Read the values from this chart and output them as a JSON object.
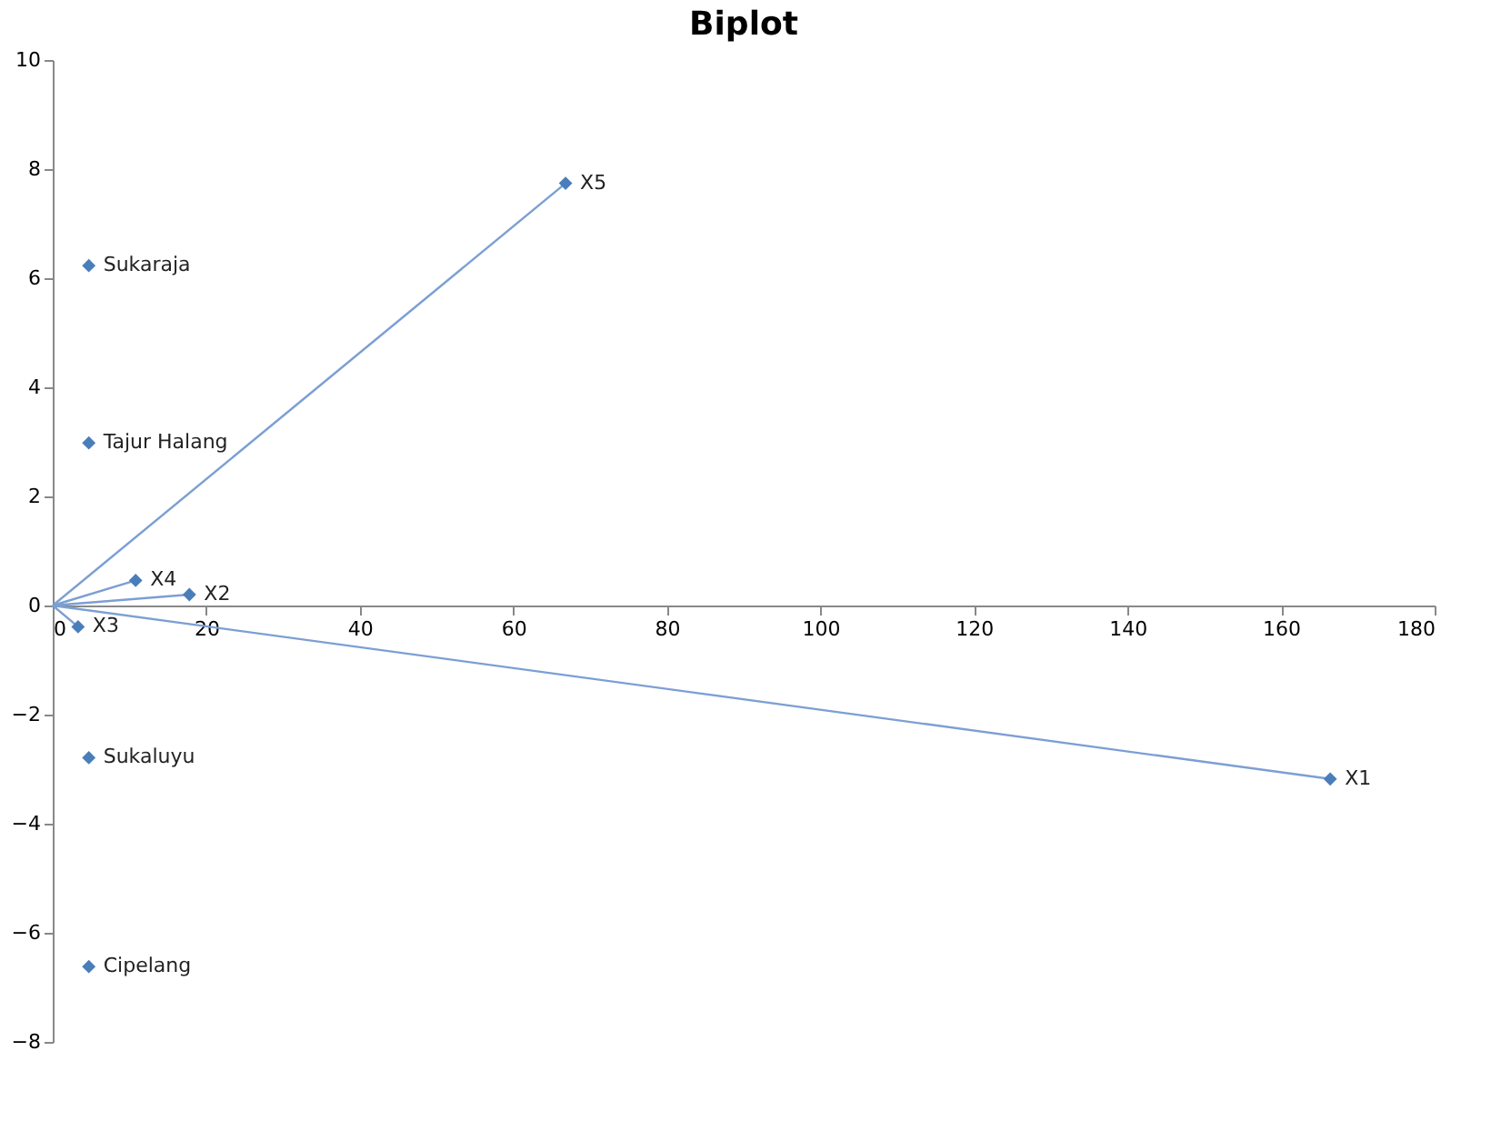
{
  "chart_data": {
    "type": "scatter",
    "title": "Biplot",
    "xlim": [
      0,
      180
    ],
    "xticks": [
      0,
      20,
      40,
      60,
      80,
      100,
      120,
      140,
      160,
      180
    ],
    "ylim": [
      -8,
      10
    ],
    "yticks": [
      -8,
      -6,
      -4,
      -2,
      0,
      2,
      4,
      6,
      8,
      10
    ],
    "grid": false,
    "series": [
      {
        "type": "line",
        "x": [
          0,
          166.4
        ],
        "values": [
          0,
          -3.18
        ],
        "color": "#7c9fd3",
        "marker": "none"
      },
      {
        "type": "line",
        "x": [
          0,
          17.8
        ],
        "values": [
          0,
          0.2
        ],
        "color": "#7c9fd3",
        "marker": "none"
      },
      {
        "type": "line",
        "x": [
          0,
          3.3
        ],
        "values": [
          0,
          -0.39
        ],
        "color": "#7c9fd3",
        "marker": "none"
      },
      {
        "type": "line",
        "x": [
          0,
          10.8
        ],
        "values": [
          0,
          0.46
        ],
        "color": "#7c9fd3",
        "marker": "none"
      },
      {
        "type": "line",
        "x": [
          0,
          66.8
        ],
        "values": [
          0,
          7.74
        ],
        "color": "#7c9fd3",
        "marker": "none"
      },
      {
        "x": [
          4.7,
          4.7,
          4.7,
          4.7,
          166.4,
          17.8,
          3.3,
          10.8,
          66.8
        ],
        "values": [
          6.23,
          2.98,
          -2.79,
          -6.62,
          -3.18,
          0.2,
          -0.39,
          0.46,
          7.74
        ],
        "color": "#4a7ebb",
        "marker": "diamond"
      }
    ],
    "annotations": [
      {
        "text": "Sukaraja",
        "x": 4.7,
        "y": 6.23
      },
      {
        "text": "Tajur Halang",
        "x": 4.7,
        "y": 2.98
      },
      {
        "text": "Sukaluyu",
        "x": 4.7,
        "y": -2.79
      },
      {
        "text": "Cipelang",
        "x": 4.7,
        "y": -6.62
      },
      {
        "text": "X1",
        "x": 166.4,
        "y": -3.18
      },
      {
        "text": "X2",
        "x": 17.8,
        "y": 0.2
      },
      {
        "text": "X3",
        "x": 3.3,
        "y": -0.39
      },
      {
        "text": "X4",
        "x": 10.8,
        "y": 0.46
      },
      {
        "text": "X5",
        "x": 66.8,
        "y": 7.74
      }
    ]
  }
}
